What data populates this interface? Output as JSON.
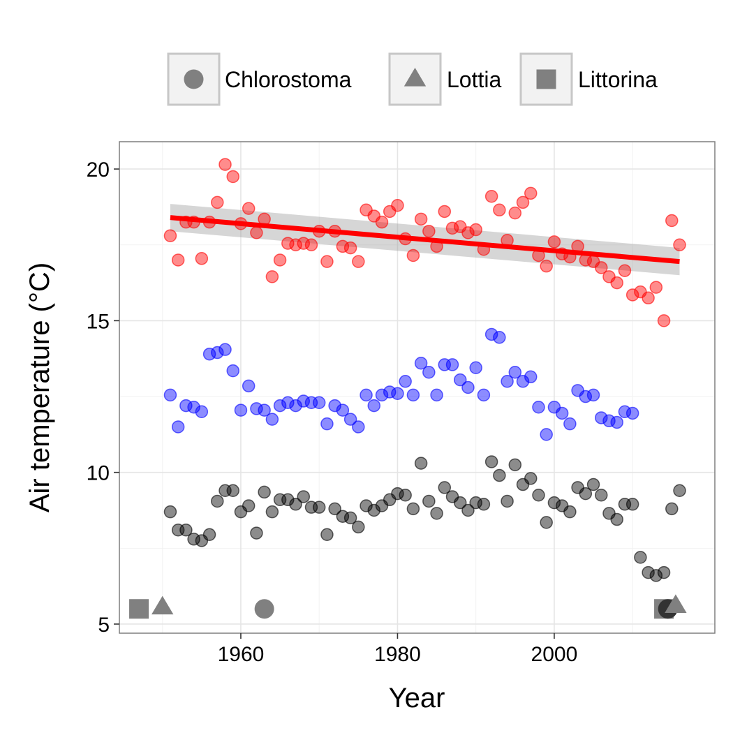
{
  "chart_data": {
    "type": "scatter",
    "xlabel": "Year",
    "ylabel": "Air temperature (°C)",
    "xlim": [
      1944.5,
      2020.5
    ],
    "ylim": [
      4.7,
      20.9
    ],
    "x_ticks": [
      1960,
      1980,
      2000
    ],
    "x_tick_labels": [
      "1960",
      "1980",
      "2000"
    ],
    "y_ticks": [
      5,
      10,
      15,
      20
    ],
    "y_tick_labels": [
      "5",
      "10",
      "15",
      "20"
    ],
    "grid": true,
    "legend": {
      "position": "top",
      "entries": [
        {
          "label": "Chlorostoma",
          "shape": "circle"
        },
        {
          "label": "Lottia",
          "shape": "triangle"
        },
        {
          "label": "Littorina",
          "shape": "square"
        }
      ]
    },
    "colors": {
      "red_series": "#ff0000",
      "blue_series": "#0000ff",
      "black_series": "#000000",
      "trend": "#ff0000",
      "ribbon": "#999999",
      "marker": "#808080"
    },
    "series": [
      {
        "color": "#ff0000",
        "x": [
          1951,
          1952,
          1953,
          1954,
          1955,
          1956,
          1957,
          1958,
          1959,
          1960,
          1961,
          1962,
          1963,
          1964,
          1965,
          1966,
          1967,
          1968,
          1969,
          1970,
          1971,
          1972,
          1973,
          1974,
          1975,
          1976,
          1977,
          1978,
          1979,
          1980,
          1981,
          1982,
          1983,
          1984,
          1985,
          1986,
          1987,
          1988,
          1989,
          1990,
          1991,
          1992,
          1993,
          1994,
          1995,
          1996,
          1997,
          1998,
          1999,
          2000,
          2001,
          2002,
          2003,
          2004,
          2005,
          2006,
          2007,
          2008,
          2009,
          2010,
          2011,
          2012,
          2013,
          2014,
          2015,
          2016
        ],
        "y": [
          17.8,
          17.0,
          18.25,
          18.25,
          17.05,
          18.25,
          18.9,
          20.15,
          19.75,
          18.2,
          18.7,
          17.9,
          18.35,
          16.45,
          17.0,
          17.55,
          17.5,
          17.55,
          17.5,
          17.95,
          16.95,
          17.95,
          17.45,
          17.4,
          16.95,
          18.65,
          18.45,
          18.25,
          18.6,
          18.8,
          17.7,
          17.15,
          18.35,
          17.95,
          17.45,
          18.6,
          18.05,
          18.1,
          17.9,
          18.0,
          17.35,
          19.1,
          18.65,
          17.65,
          18.55,
          18.9,
          19.2,
          17.15,
          16.8,
          17.6,
          17.2,
          17.1,
          17.45,
          17.0,
          16.95,
          16.75,
          16.45,
          16.25,
          16.65,
          15.85,
          15.95,
          15.75,
          16.1,
          15.0,
          18.3,
          17.5
        ]
      },
      {
        "color": "#0000ff",
        "x": [
          1951,
          1952,
          1953,
          1954,
          1955,
          1956,
          1957,
          1958,
          1959,
          1960,
          1961,
          1962,
          1963,
          1964,
          1965,
          1966,
          1967,
          1968,
          1969,
          1970,
          1971,
          1972,
          1973,
          1974,
          1975,
          1976,
          1977,
          1978,
          1979,
          1980,
          1981,
          1982,
          1983,
          1984,
          1985,
          1986,
          1987,
          1988,
          1989,
          1990,
          1991,
          1992,
          1993,
          1994,
          1995,
          1996,
          1997,
          1998,
          1999,
          2000,
          2001,
          2002,
          2003,
          2004,
          2005,
          2006,
          2007,
          2008,
          2009,
          2010
        ],
        "y": [
          12.55,
          11.5,
          12.2,
          12.15,
          12.0,
          13.9,
          13.95,
          14.05,
          13.35,
          12.05,
          12.85,
          12.1,
          12.05,
          11.75,
          12.2,
          12.3,
          12.2,
          12.35,
          12.3,
          12.3,
          11.6,
          12.2,
          12.05,
          11.75,
          11.5,
          12.55,
          12.2,
          12.55,
          12.65,
          12.6,
          13.0,
          12.55,
          13.6,
          13.3,
          12.55,
          13.55,
          13.55,
          13.05,
          12.8,
          13.45,
          12.55,
          14.55,
          14.45,
          13.0,
          13.3,
          13.0,
          13.15,
          12.15,
          11.25,
          12.15,
          11.95,
          11.6,
          12.7,
          12.5,
          12.55,
          11.8,
          11.7,
          11.65,
          12.0,
          11.95
        ]
      },
      {
        "color": "#000000",
        "x": [
          1951,
          1952,
          1953,
          1954,
          1955,
          1956,
          1957,
          1958,
          1959,
          1960,
          1961,
          1962,
          1963,
          1964,
          1965,
          1966,
          1967,
          1968,
          1969,
          1970,
          1971,
          1972,
          1973,
          1974,
          1975,
          1976,
          1977,
          1978,
          1979,
          1980,
          1981,
          1982,
          1983,
          1984,
          1985,
          1986,
          1987,
          1988,
          1989,
          1990,
          1991,
          1992,
          1993,
          1994,
          1995,
          1996,
          1997,
          1998,
          1999,
          2000,
          2001,
          2002,
          2003,
          2004,
          2005,
          2006,
          2007,
          2008,
          2009,
          2010,
          2011,
          2012,
          2013,
          2014,
          2015,
          2016
        ],
        "y": [
          8.7,
          8.1,
          8.1,
          7.8,
          7.75,
          7.95,
          9.05,
          9.4,
          9.4,
          8.7,
          8.9,
          8.0,
          9.35,
          8.7,
          9.1,
          9.1,
          8.95,
          9.2,
          8.85,
          8.85,
          7.95,
          8.8,
          8.55,
          8.5,
          8.2,
          8.9,
          8.75,
          8.9,
          9.1,
          9.3,
          9.25,
          8.8,
          10.3,
          9.05,
          8.65,
          9.5,
          9.2,
          9.0,
          8.75,
          9.0,
          8.95,
          10.35,
          9.9,
          9.05,
          10.25,
          9.6,
          9.8,
          9.25,
          8.35,
          9.0,
          8.9,
          8.7,
          9.5,
          9.3,
          9.6,
          9.25,
          8.65,
          8.45,
          8.95,
          8.95,
          7.2,
          6.7,
          6.6,
          6.7,
          8.8,
          9.4
        ]
      }
    ],
    "trend": {
      "x": [
        1951,
        2016
      ],
      "y": [
        18.4,
        16.95
      ],
      "ribbon_half_width": [
        0.45,
        0.45
      ]
    },
    "markers": [
      {
        "shape": "square",
        "x": 1947,
        "y": 5.5
      },
      {
        "shape": "triangle",
        "x": 1950,
        "y": 5.55
      },
      {
        "shape": "circle",
        "x": 1963,
        "y": 5.5
      },
      {
        "shape": "square",
        "x": 2014,
        "y": 5.5
      },
      {
        "shape": "circle",
        "x": 2014.5,
        "y": 5.5
      },
      {
        "shape": "triangle",
        "x": 2015.5,
        "y": 5.6
      }
    ]
  }
}
